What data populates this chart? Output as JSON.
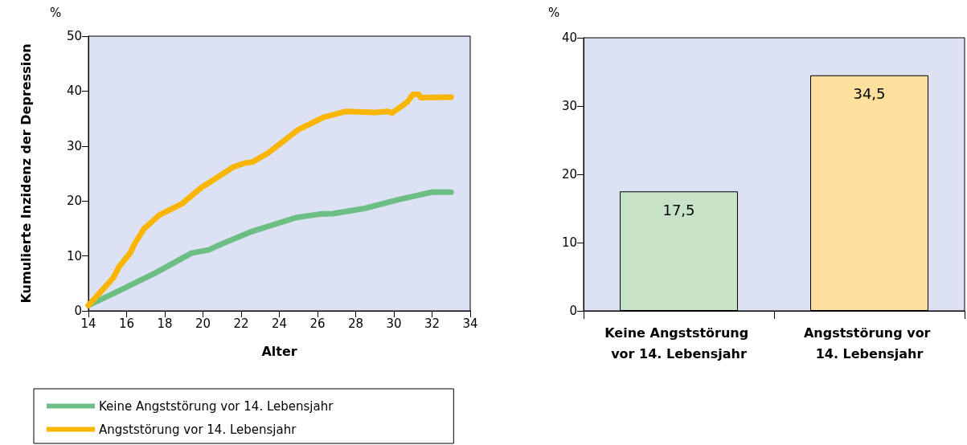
{
  "chart_data": [
    {
      "type": "line",
      "xlabel": "Alter",
      "ylabel": "Kumulierte Inzidenz der Depression",
      "annotations": [
        "%"
      ],
      "xlim": [
        14,
        34
      ],
      "xticks": [
        14,
        16,
        18,
        20,
        22,
        24,
        26,
        28,
        30,
        32,
        34
      ],
      "ylim": [
        0,
        50
      ],
      "yticks": [
        0,
        10,
        20,
        30,
        40,
        50
      ],
      "grid": false,
      "legend": "bottom",
      "marker": "none",
      "line_style": "solid",
      "series": [
        {
          "name": "Keine Angststörung vor 14. Lebensjahr",
          "color": "#6dbe84",
          "x": [
            14,
            15.4,
            17.5,
            19.4,
            20.3,
            21.0,
            22.6,
            24.9,
            26.1,
            26.8,
            28.4,
            30.3,
            32.0,
            33.0
          ],
          "values": [
            1.0,
            3.3,
            6.9,
            10.5,
            11.1,
            12.2,
            14.5,
            17.0,
            17.6,
            17.7,
            18.6,
            20.3,
            21.6,
            21.6
          ]
        },
        {
          "name": "Angststörung vor 14. Lebensjahr",
          "color": "#f9b500",
          "x": [
            14,
            14.6,
            15.3,
            15.6,
            16.2,
            16.4,
            16.9,
            17.7,
            18.9,
            19.9,
            21.6,
            22.2,
            22.6,
            23.4,
            25.0,
            26.3,
            27.5,
            29.0,
            29.7,
            29.9,
            30.7,
            31.0,
            31.3,
            31.4,
            33.0
          ],
          "values": [
            1.0,
            3.3,
            6.0,
            8.0,
            10.6,
            12.1,
            14.9,
            17.4,
            19.5,
            22.4,
            26.2,
            26.9,
            27.1,
            28.7,
            33.0,
            35.2,
            36.3,
            36.1,
            36.3,
            36.0,
            38.0,
            39.4,
            39.4,
            38.8,
            38.9
          ]
        }
      ]
    },
    {
      "type": "bar",
      "ylabel": "%",
      "categories": [
        "Keine Angststörung vor 14. Lebensjahr",
        "Angststörung vor 14. Lebensjahr"
      ],
      "values": [
        17.5,
        34.5
      ],
      "value_labels": [
        "17,5",
        "34,5"
      ],
      "colors": [
        "#c8e2c8",
        "#fde09e"
      ],
      "ylim": [
        0,
        40
      ],
      "yticks": [
        0,
        10,
        20,
        30,
        40
      ],
      "grid": false
    }
  ]
}
